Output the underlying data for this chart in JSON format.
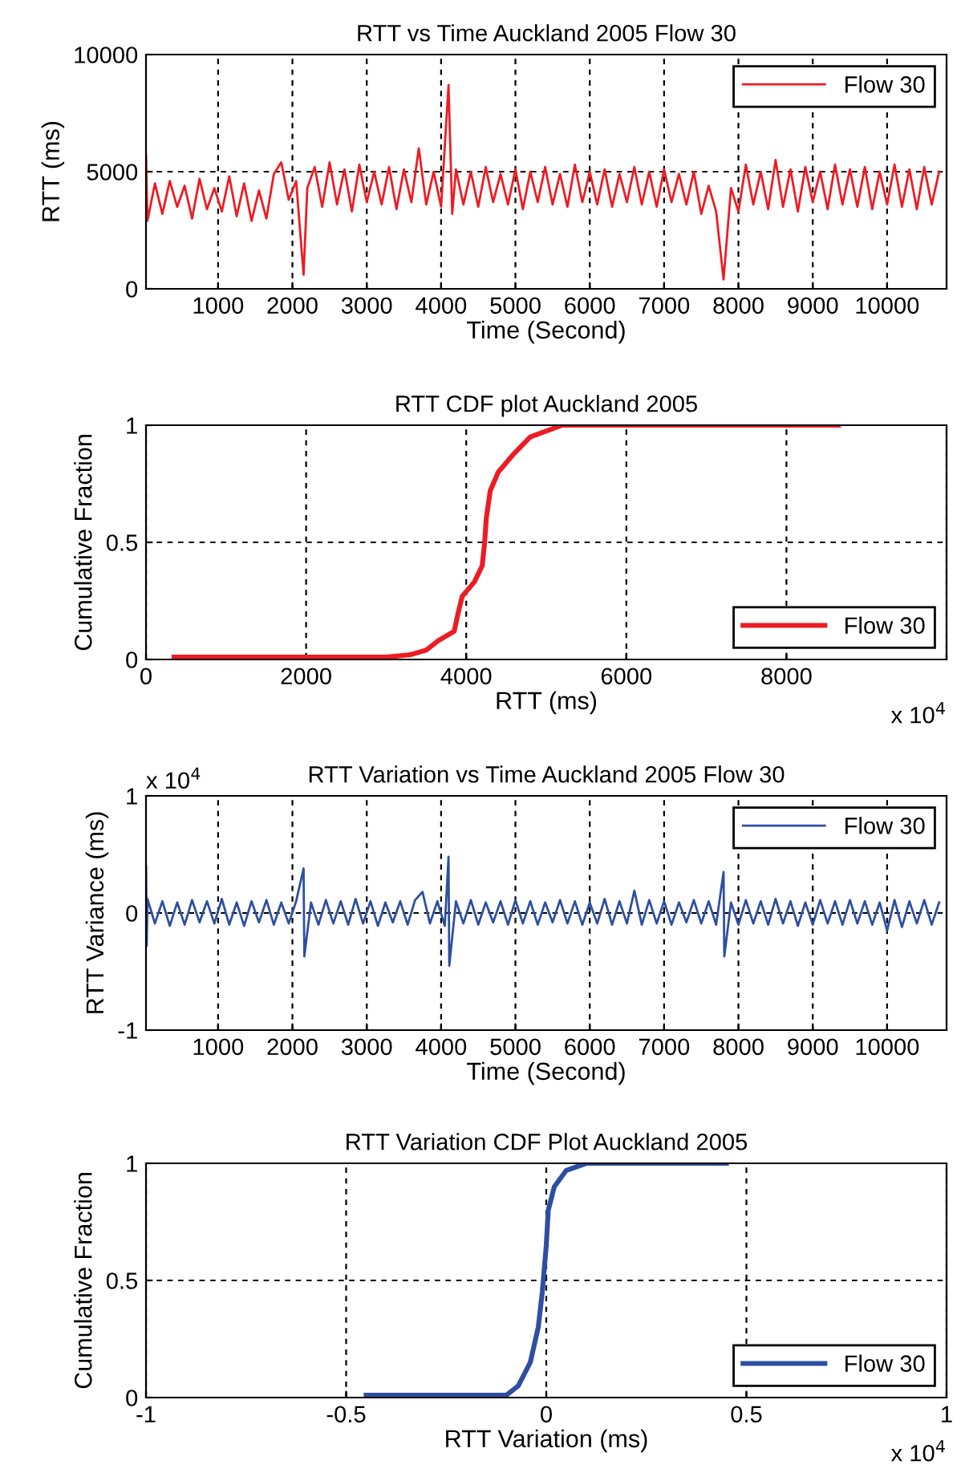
{
  "chart_data": [
    {
      "type": "line",
      "title": "RTT vs Time Auckland 2005 Flow 30",
      "xlabel": "Time (Second)",
      "ylabel": "RTT (ms)",
      "xlim": [
        30,
        10800
      ],
      "xticks": [
        1000,
        2000,
        3000,
        4000,
        5000,
        6000,
        7000,
        8000,
        9000,
        10000
      ],
      "ylim": [
        0,
        10000
      ],
      "yticks": [
        0,
        5000,
        10000
      ],
      "grid": true,
      "legend": "top right",
      "line_style": "solid",
      "marker": "none",
      "series": [
        {
          "name": "Flow 30",
          "color": "#ed1c24",
          "x": [
            30,
            50,
            150,
            250,
            350,
            450,
            550,
            650,
            750,
            850,
            950,
            1050,
            1150,
            1250,
            1350,
            1450,
            1550,
            1650,
            1750,
            1850,
            1950,
            2050,
            2150,
            2200,
            2300,
            2400,
            2500,
            2600,
            2700,
            2800,
            2900,
            3000,
            3100,
            3200,
            3300,
            3400,
            3500,
            3600,
            3700,
            3800,
            3900,
            4000,
            4100,
            4150,
            4200,
            4300,
            4400,
            4500,
            4600,
            4700,
            4800,
            4900,
            5000,
            5100,
            5200,
            5300,
            5400,
            5500,
            5600,
            5700,
            5800,
            5900,
            6000,
            6100,
            6200,
            6300,
            6400,
            6500,
            6600,
            6700,
            6800,
            6900,
            7000,
            7100,
            7200,
            7300,
            7400,
            7500,
            7600,
            7700,
            7800,
            7900,
            8000,
            8100,
            8200,
            8300,
            8400,
            8500,
            8600,
            8700,
            8800,
            8900,
            9000,
            9100,
            9200,
            9300,
            9400,
            9500,
            9600,
            9700,
            9800,
            9900,
            10000,
            10100,
            10200,
            10300,
            10400,
            10500,
            10600,
            10700
          ],
          "values": [
            5700,
            2900,
            4500,
            3200,
            4600,
            3500,
            4400,
            3000,
            4700,
            3400,
            4300,
            3300,
            4800,
            3100,
            4500,
            2900,
            4200,
            3000,
            4900,
            5400,
            3800,
            4600,
            600,
            4300,
            5200,
            3500,
            5400,
            3600,
            5100,
            3300,
            5300,
            3700,
            5000,
            3600,
            5200,
            3400,
            5100,
            3700,
            6000,
            3600,
            5000,
            3500,
            8700,
            3200,
            5100,
            3600,
            5000,
            3500,
            5200,
            3700,
            4900,
            3600,
            5100,
            3400,
            5000,
            3700,
            5200,
            3600,
            4900,
            3500,
            5300,
            3700,
            5000,
            3600,
            5100,
            3500,
            4900,
            3700,
            5200,
            3600,
            5000,
            3500,
            5100,
            3700,
            4900,
            3600,
            5000,
            3200,
            4400,
            3300,
            400,
            4300,
            3300,
            5300,
            3600,
            5000,
            3400,
            5500,
            3500,
            5100,
            3300,
            5200,
            3700,
            5000,
            3400,
            5300,
            3600,
            5100,
            3500,
            5200,
            3400,
            5000,
            3600,
            5300,
            3500,
            5100,
            3400,
            5200,
            3600,
            5000
          ]
        }
      ]
    },
    {
      "type": "line",
      "title": "RTT CDF plot Auckland 2005",
      "xlabel": "RTT (ms)",
      "ylabel": "Cumulative Fraction",
      "annotations": [
        "x 10$^{4}$"
      ],
      "xlim": [
        0,
        10000
      ],
      "xticks": [
        0,
        2000,
        4000,
        6000,
        8000,
        {
          "value": 10000,
          "label": null
        }
      ],
      "ylim": [
        0,
        1
      ],
      "yticks": [
        0,
        0.5,
        1
      ],
      "grid": true,
      "legend": "bottom right",
      "line_style": "solid",
      "marker": "none",
      "series": [
        {
          "name": "Flow 30",
          "color": "#ed1c24",
          "x": [
            350,
            3000,
            3300,
            3500,
            3650,
            3850,
            3900,
            3950,
            4100,
            4200,
            4230,
            4250,
            4300,
            4400,
            4600,
            4800,
            5200,
            8650
          ],
          "values": [
            0.01,
            0.01,
            0.02,
            0.04,
            0.08,
            0.12,
            0.2,
            0.27,
            0.33,
            0.4,
            0.5,
            0.6,
            0.72,
            0.8,
            0.88,
            0.95,
            1.0,
            1.0
          ]
        }
      ]
    },
    {
      "type": "line",
      "title": "RTT Variation vs Time Auckland 2005 Flow 30",
      "xlabel": "Time (Second)",
      "ylabel": "RTT Variance (ms)",
      "annotations": [
        "x 10$^{4}$"
      ],
      "xlim": [
        30,
        10800
      ],
      "xticks": [
        1000,
        2000,
        3000,
        4000,
        5000,
        6000,
        7000,
        8000,
        9000,
        10000
      ],
      "ylim": [
        -1,
        1
      ],
      "yticks": [
        -1,
        0,
        1
      ],
      "grid": true,
      "legend": "top right",
      "line_style": "solid",
      "marker": "none",
      "series": [
        {
          "name": "Flow 30",
          "color": "#2e4fa0",
          "x": [
            30,
            40,
            50,
            150,
            250,
            350,
            450,
            550,
            650,
            750,
            850,
            950,
            1050,
            1150,
            1250,
            1350,
            1450,
            1550,
            1650,
            1750,
            1850,
            1950,
            2050,
            2150,
            2160,
            2250,
            2350,
            2450,
            2550,
            2650,
            2750,
            2850,
            2950,
            3050,
            3150,
            3250,
            3350,
            3450,
            3550,
            3650,
            3750,
            3850,
            3950,
            4050,
            4100,
            4110,
            4200,
            4300,
            4400,
            4500,
            4600,
            4700,
            4800,
            4900,
            5000,
            5100,
            5200,
            5300,
            5400,
            5500,
            5600,
            5700,
            5800,
            5900,
            6000,
            6100,
            6200,
            6300,
            6400,
            6500,
            6600,
            6700,
            6800,
            6900,
            7000,
            7100,
            7200,
            7300,
            7400,
            7500,
            7600,
            7700,
            7800,
            7810,
            7900,
            8000,
            8100,
            8200,
            8300,
            8400,
            8500,
            8600,
            8700,
            8800,
            8900,
            9000,
            9100,
            9200,
            9300,
            9400,
            9500,
            9600,
            9700,
            9800,
            9900,
            10000,
            10100,
            10200,
            10300,
            10400,
            10500,
            10600,
            10700
          ],
          "values": [
            0.4,
            -0.28,
            0.12,
            -0.09,
            0.1,
            -0.11,
            0.09,
            -0.1,
            0.11,
            -0.08,
            0.1,
            -0.09,
            0.12,
            -0.1,
            0.09,
            -0.11,
            0.1,
            -0.08,
            0.11,
            -0.1,
            0.09,
            -0.09,
            0.1,
            0.38,
            -0.37,
            0.09,
            -0.1,
            0.11,
            -0.09,
            0.1,
            -0.1,
            0.12,
            -0.09,
            0.1,
            -0.11,
            0.09,
            -0.08,
            0.1,
            -0.1,
            0.11,
            0.18,
            -0.09,
            0.1,
            -0.11,
            0.48,
            -0.45,
            0.1,
            -0.09,
            0.11,
            -0.1,
            0.09,
            -0.08,
            0.1,
            -0.1,
            0.11,
            -0.09,
            0.1,
            -0.1,
            0.09,
            -0.08,
            0.11,
            -0.09,
            0.1,
            -0.1,
            0.09,
            -0.09,
            0.12,
            -0.1,
            0.1,
            -0.09,
            0.19,
            -0.1,
            0.11,
            -0.09,
            0.1,
            -0.1,
            0.09,
            -0.08,
            0.11,
            -0.09,
            0.1,
            -0.1,
            0.35,
            -0.37,
            0.09,
            -0.1,
            0.11,
            -0.09,
            0.1,
            -0.1,
            0.12,
            -0.09,
            0.1,
            -0.11,
            0.09,
            -0.1,
            0.11,
            -0.09,
            0.1,
            -0.1,
            0.11,
            -0.09,
            0.1,
            -0.1,
            0.09,
            -0.15,
            0.11,
            -0.12,
            0.1,
            -0.09,
            0.11,
            -0.1,
            0.09
          ]
        }
      ]
    },
    {
      "type": "line",
      "title": "RTT Variation CDF Plot Auckland 2005",
      "xlabel": "RTT Variation (ms)",
      "ylabel": "Cumulative Fraction",
      "annotations": [
        "x 10$^{4}$"
      ],
      "xlim": [
        -1,
        1
      ],
      "xticks": [
        -1,
        -0.5,
        0,
        0.5,
        1
      ],
      "ylim": [
        0,
        1
      ],
      "yticks": [
        0,
        0.5,
        1
      ],
      "grid": true,
      "legend": "bottom right",
      "line_style": "solid",
      "marker": "none",
      "series": [
        {
          "name": "Flow 30",
          "color": "#2e4fa0",
          "x": [
            -0.45,
            -0.1,
            -0.07,
            -0.04,
            -0.02,
            -0.01,
            -0.005,
            0,
            0.005,
            0.02,
            0.05,
            0.1,
            0.45
          ],
          "values": [
            0.01,
            0.01,
            0.05,
            0.15,
            0.3,
            0.45,
            0.55,
            0.65,
            0.8,
            0.9,
            0.97,
            1.0,
            1.0
          ]
        }
      ]
    }
  ]
}
